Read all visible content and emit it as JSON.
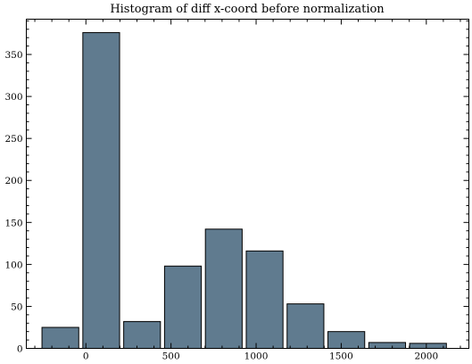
{
  "chart_data": {
    "type": "bar",
    "title": "Histogram of diff x-coord before normalization",
    "xlabel": "",
    "ylabel": "",
    "xlim": [
      -350,
      2250
    ],
    "ylim": [
      0,
      392
    ],
    "grid": false,
    "bin_width": 240,
    "bins": [
      {
        "center": -150,
        "value": 25
      },
      {
        "center": 90,
        "value": 376
      },
      {
        "center": 330,
        "value": 32
      },
      {
        "center": 570,
        "value": 98
      },
      {
        "center": 810,
        "value": 142
      },
      {
        "center": 1050,
        "value": 116
      },
      {
        "center": 1290,
        "value": 53
      },
      {
        "center": 1530,
        "value": 20
      },
      {
        "center": 1770,
        "value": 7
      },
      {
        "center": 2010,
        "value": 6
      }
    ],
    "x_ticks": [
      {
        "value": 0,
        "label": "0"
      },
      {
        "value": 500,
        "label": "500"
      },
      {
        "value": 1000,
        "label": "1000"
      },
      {
        "value": 1500,
        "label": "1500"
      },
      {
        "value": 2000,
        "label": "2000"
      }
    ],
    "y_ticks": [
      {
        "value": 0,
        "label": "0"
      },
      {
        "value": 50,
        "label": "50"
      },
      {
        "value": 100,
        "label": "100"
      },
      {
        "value": 150,
        "label": "150"
      },
      {
        "value": 200,
        "label": "200"
      },
      {
        "value": 250,
        "label": "250"
      },
      {
        "value": 300,
        "label": "300"
      },
      {
        "value": 350,
        "label": "350"
      }
    ]
  }
}
